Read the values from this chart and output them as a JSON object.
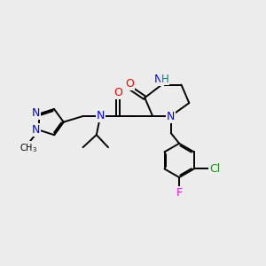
{
  "bg_color": "#ececec",
  "atom_colors": {
    "N": "#0000ff",
    "O": "#ff0000",
    "Cl": "#228b22",
    "F": "#ff00ff",
    "H": "#008080",
    "C": "#000000"
  },
  "bond_color": "#000000",
  "bond_width": 1.4,
  "figsize": [
    3.0,
    3.0
  ],
  "dpi": 100
}
